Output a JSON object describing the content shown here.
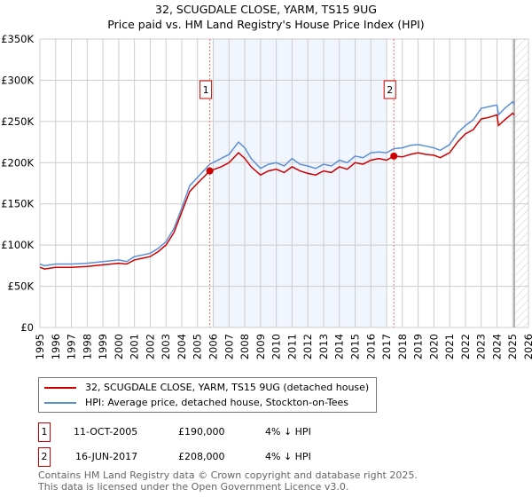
{
  "chart_data": {
    "type": "line",
    "title": "32, SCUGDALE CLOSE, YARM, TS15 9UG",
    "subtitle": "Price paid vs. HM Land Registry's House Price Index (HPI)",
    "xlim": [
      1995,
      2026
    ],
    "ylim": [
      0,
      350000
    ],
    "x_ticks": [
      "1995",
      "1996",
      "1997",
      "1998",
      "1999",
      "2000",
      "2001",
      "2002",
      "2003",
      "2004",
      "2005",
      "2006",
      "2007",
      "2008",
      "2009",
      "2010",
      "2011",
      "2012",
      "2013",
      "2014",
      "2015",
      "2016",
      "2017",
      "2018",
      "2019",
      "2020",
      "2021",
      "2022",
      "2023",
      "2024",
      "2025",
      "2026"
    ],
    "y_ticks": [
      {
        "v": 0,
        "label": "£0"
      },
      {
        "v": 50000,
        "label": "£50K"
      },
      {
        "v": 100000,
        "label": "£100K"
      },
      {
        "v": 150000,
        "label": "£150K"
      },
      {
        "v": 200000,
        "label": "£200K"
      },
      {
        "v": 250000,
        "label": "£250K"
      },
      {
        "v": 300000,
        "label": "£300K"
      },
      {
        "v": 350000,
        "label": "£350K"
      }
    ],
    "grid": true,
    "shaded_period": [
      2006.0,
      2017.0
    ],
    "forecast_hatch_from": 2025.1,
    "series": [
      {
        "name": "32, SCUGDALE CLOSE, YARM, TS15 9UG (detached house)",
        "color": "#cc0000",
        "x": [
          1995,
          1995.3,
          1996,
          1997,
          1998,
          1999,
          2000,
          2000.5,
          2001,
          2001.5,
          2002,
          2002.5,
          2003,
          2003.5,
          2004,
          2004.5,
          2005,
          2005.78,
          2006.5,
          2007,
          2007.6,
          2008,
          2008.4,
          2009,
          2009.5,
          2010,
          2010.5,
          2011,
          2011.5,
          2012,
          2012.5,
          2013,
          2013.5,
          2014,
          2014.5,
          2015,
          2015.5,
          2016,
          2016.5,
          2017,
          2017.46,
          2018,
          2018.5,
          2019,
          2019.5,
          2020,
          2020.4,
          2021,
          2021.5,
          2022,
          2022.5,
          2023,
          2023.5,
          2024,
          2024.1,
          2024.5,
          2025,
          2025.1
        ],
        "y": [
          73000,
          71000,
          73000,
          73000,
          74000,
          76000,
          78000,
          77000,
          82000,
          84000,
          86000,
          92000,
          100000,
          115000,
          140000,
          165000,
          175000,
          190000,
          195000,
          200000,
          212000,
          205000,
          195000,
          185000,
          190000,
          192000,
          188000,
          195000,
          190000,
          187000,
          185000,
          190000,
          188000,
          195000,
          192000,
          200000,
          198000,
          203000,
          205000,
          203000,
          208000,
          207000,
          210000,
          212000,
          210000,
          209000,
          206000,
          212000,
          225000,
          235000,
          240000,
          253000,
          255000,
          258000,
          245000,
          252000,
          260000,
          258000
        ]
      },
      {
        "name": "HPI: Average price, detached house, Stockton-on-Tees",
        "color": "#5b8fd6",
        "x": [
          1995,
          1995.3,
          1996,
          1997,
          1998,
          1999,
          2000,
          2000.5,
          2001,
          2001.5,
          2002,
          2002.5,
          2003,
          2003.5,
          2004,
          2004.5,
          2005,
          2005.78,
          2006.5,
          2007,
          2007.6,
          2008,
          2008.4,
          2009,
          2009.5,
          2010,
          2010.5,
          2011,
          2011.5,
          2012,
          2012.5,
          2013,
          2013.5,
          2014,
          2014.5,
          2015,
          2015.5,
          2016,
          2016.5,
          2017,
          2017.46,
          2018,
          2018.5,
          2019,
          2019.5,
          2020,
          2020.4,
          2021,
          2021.5,
          2022,
          2022.5,
          2023,
          2023.5,
          2024,
          2024.1,
          2024.5,
          2025,
          2025.1
        ],
        "y": [
          77000,
          75000,
          77000,
          77000,
          78000,
          80000,
          82000,
          80000,
          86000,
          88000,
          90000,
          96000,
          104000,
          120000,
          145000,
          172000,
          182000,
          198000,
          205000,
          210000,
          225000,
          218000,
          205000,
          193000,
          198000,
          200000,
          196000,
          205000,
          198000,
          196000,
          193000,
          198000,
          196000,
          203000,
          200000,
          208000,
          206000,
          212000,
          213000,
          212000,
          217000,
          218000,
          221000,
          222000,
          220000,
          218000,
          215000,
          222000,
          236000,
          245000,
          252000,
          266000,
          268000,
          270000,
          258000,
          266000,
          274000,
          271000
        ]
      }
    ],
    "annotations": [
      {
        "label": "1",
        "x": 2005.78,
        "y": 190000
      },
      {
        "label": "2",
        "x": 2017.46,
        "y": 208000
      }
    ]
  },
  "legend": {
    "property": "32, SCUGDALE CLOSE, YARM, TS15 9UG (detached house)",
    "hpi": "HPI: Average price, detached house, Stockton-on-Tees"
  },
  "sales": [
    {
      "num": "1",
      "date": "11-OCT-2005",
      "price": "£190,000",
      "diff": "4% ↓ HPI"
    },
    {
      "num": "2",
      "date": "16-JUN-2017",
      "price": "£208,000",
      "diff": "4% ↓ HPI"
    }
  ],
  "footer": {
    "line1": "Contains HM Land Registry data © Crown copyright and database right 2025.",
    "line2": "This data is licensed under the Open Government Licence v3.0."
  }
}
